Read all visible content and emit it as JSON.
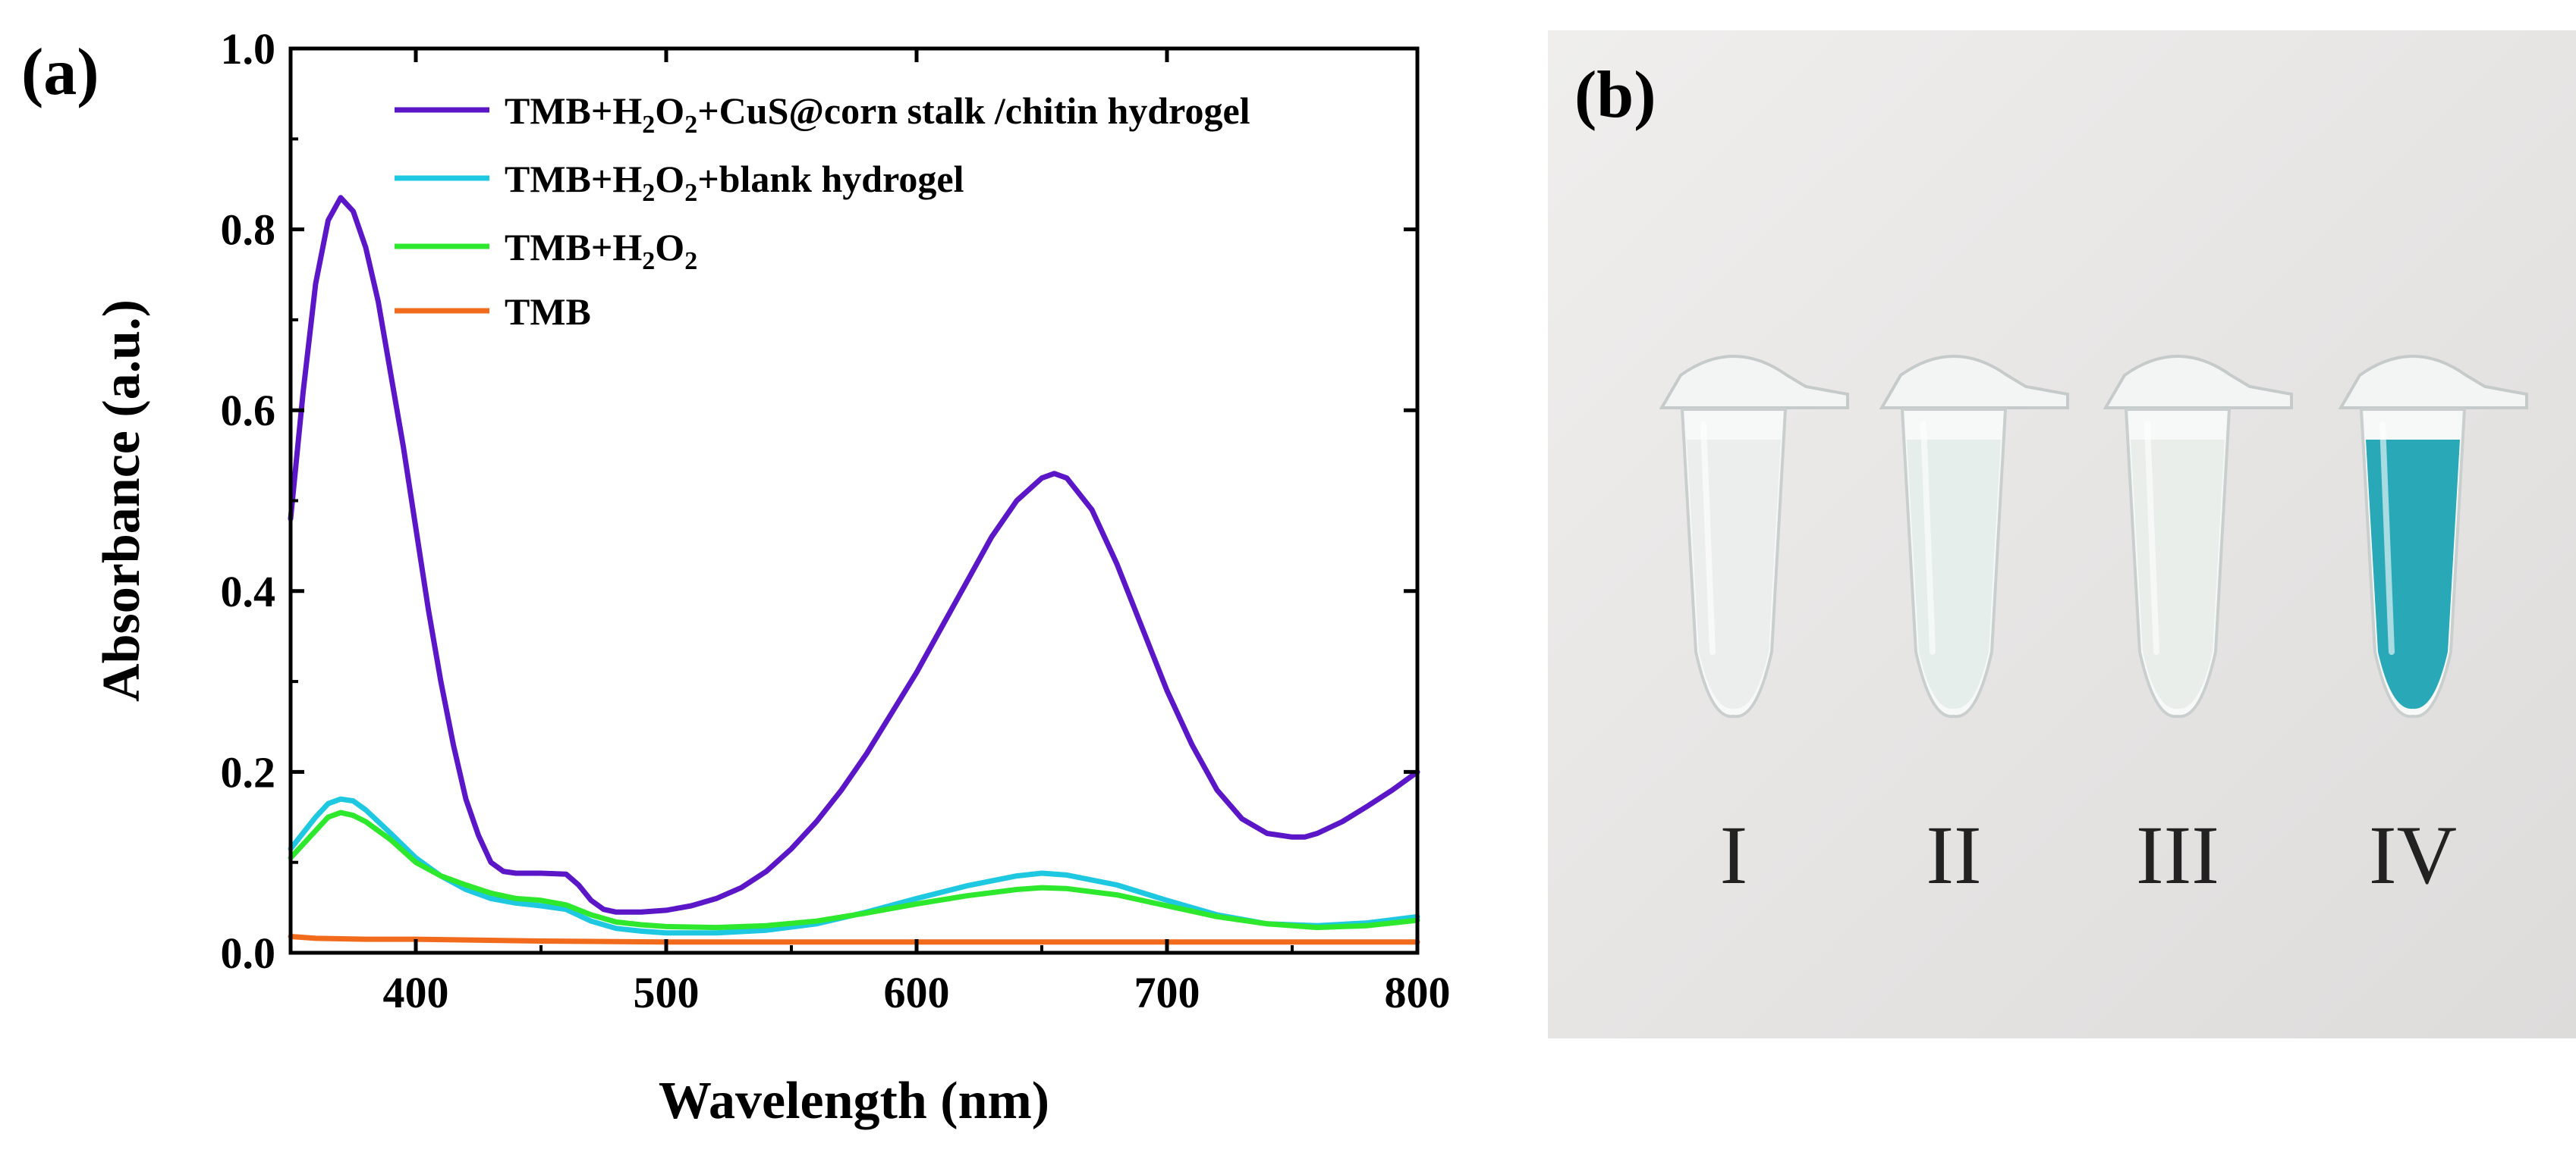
{
  "panel_a_label": "(a)",
  "panel_b_label": "(b)",
  "chart_data": {
    "type": "line",
    "title": "",
    "xlabel": "Wavelength (nm)",
    "ylabel": "Absorbance (a.u.)",
    "xlim": [
      350,
      800
    ],
    "ylim": [
      0.0,
      1.0
    ],
    "xticks": [
      400,
      500,
      600,
      700,
      800
    ],
    "xtick_labels": [
      "400",
      "500",
      "600",
      "700",
      "800"
    ],
    "yticks": [
      0.0,
      0.2,
      0.4,
      0.6,
      0.8,
      1.0
    ],
    "ytick_labels": [
      "0.0",
      "0.2",
      "0.4",
      "0.6",
      "0.8",
      "1.0"
    ],
    "legend_position": "top-right",
    "series": [
      {
        "name": "TMB+H2O2+CuS@corn stalk /chitin hydrogel",
        "legend": {
          "pre": "TMB+H",
          "sub1": "2",
          "mid": "O",
          "sub2": "2",
          "post": "+CuS@corn stalk /chitin hydrogel"
        },
        "color": "#5b16c8",
        "x": [
          350,
          355,
          360,
          365,
          370,
          375,
          380,
          385,
          390,
          395,
          400,
          405,
          410,
          415,
          420,
          425,
          430,
          435,
          440,
          450,
          460,
          465,
          470,
          475,
          480,
          490,
          500,
          510,
          520,
          530,
          540,
          550,
          560,
          570,
          580,
          590,
          600,
          610,
          620,
          630,
          640,
          650,
          655,
          660,
          670,
          680,
          690,
          700,
          710,
          720,
          730,
          740,
          750,
          755,
          760,
          770,
          780,
          790,
          800
        ],
        "y": [
          0.48,
          0.62,
          0.74,
          0.81,
          0.835,
          0.82,
          0.78,
          0.72,
          0.64,
          0.56,
          0.47,
          0.38,
          0.3,
          0.23,
          0.17,
          0.13,
          0.1,
          0.09,
          0.088,
          0.088,
          0.087,
          0.075,
          0.058,
          0.048,
          0.045,
          0.045,
          0.047,
          0.052,
          0.06,
          0.072,
          0.09,
          0.115,
          0.145,
          0.18,
          0.22,
          0.265,
          0.31,
          0.36,
          0.41,
          0.46,
          0.5,
          0.525,
          0.53,
          0.525,
          0.49,
          0.43,
          0.36,
          0.29,
          0.23,
          0.18,
          0.148,
          0.132,
          0.128,
          0.128,
          0.132,
          0.145,
          0.162,
          0.18,
          0.2
        ]
      },
      {
        "name": "TMB+H2O2+blank hydrogel",
        "legend": {
          "pre": "TMB+H",
          "sub1": "2",
          "mid": "O",
          "sub2": "2",
          "post": "+blank hydrogel"
        },
        "color": "#1ec8e0",
        "x": [
          350,
          360,
          365,
          370,
          375,
          380,
          390,
          400,
          410,
          420,
          430,
          440,
          450,
          460,
          470,
          480,
          490,
          500,
          520,
          540,
          560,
          580,
          600,
          620,
          640,
          650,
          660,
          680,
          700,
          720,
          740,
          760,
          780,
          800
        ],
        "y": [
          0.115,
          0.15,
          0.165,
          0.17,
          0.168,
          0.158,
          0.132,
          0.105,
          0.085,
          0.07,
          0.06,
          0.055,
          0.052,
          0.048,
          0.035,
          0.027,
          0.024,
          0.022,
          0.022,
          0.025,
          0.032,
          0.045,
          0.06,
          0.074,
          0.085,
          0.088,
          0.086,
          0.075,
          0.058,
          0.042,
          0.032,
          0.03,
          0.033,
          0.04
        ]
      },
      {
        "name": "TMB+H2O2",
        "legend": {
          "pre": "TMB+H",
          "sub1": "2",
          "mid": "O",
          "sub2": "2",
          "post": ""
        },
        "color": "#2ee82e",
        "x": [
          350,
          360,
          365,
          370,
          375,
          380,
          390,
          400,
          410,
          420,
          430,
          440,
          450,
          460,
          470,
          480,
          490,
          500,
          520,
          540,
          560,
          580,
          600,
          620,
          640,
          650,
          660,
          680,
          700,
          720,
          740,
          760,
          780,
          800
        ],
        "y": [
          0.105,
          0.135,
          0.15,
          0.155,
          0.152,
          0.145,
          0.125,
          0.1,
          0.085,
          0.075,
          0.066,
          0.06,
          0.058,
          0.053,
          0.042,
          0.034,
          0.031,
          0.029,
          0.028,
          0.03,
          0.035,
          0.044,
          0.054,
          0.063,
          0.07,
          0.072,
          0.071,
          0.064,
          0.052,
          0.04,
          0.032,
          0.028,
          0.03,
          0.036
        ]
      },
      {
        "name": "TMB",
        "legend": {
          "pre": "TMB",
          "sub1": "",
          "mid": "",
          "sub2": "",
          "post": ""
        },
        "color": "#f26a1b",
        "x": [
          350,
          360,
          380,
          400,
          450,
          500,
          550,
          600,
          650,
          700,
          750,
          800
        ],
        "y": [
          0.018,
          0.016,
          0.015,
          0.015,
          0.013,
          0.012,
          0.012,
          0.012,
          0.012,
          0.012,
          0.012,
          0.012
        ]
      }
    ]
  },
  "photo": {
    "tube_labels": [
      "I",
      "II",
      "III",
      "IV"
    ],
    "tube_colors": [
      "#e9ecea",
      "#e2ece7",
      "#e6ece9",
      "#1ea3b4"
    ],
    "background_color": "#e8e7e6"
  }
}
